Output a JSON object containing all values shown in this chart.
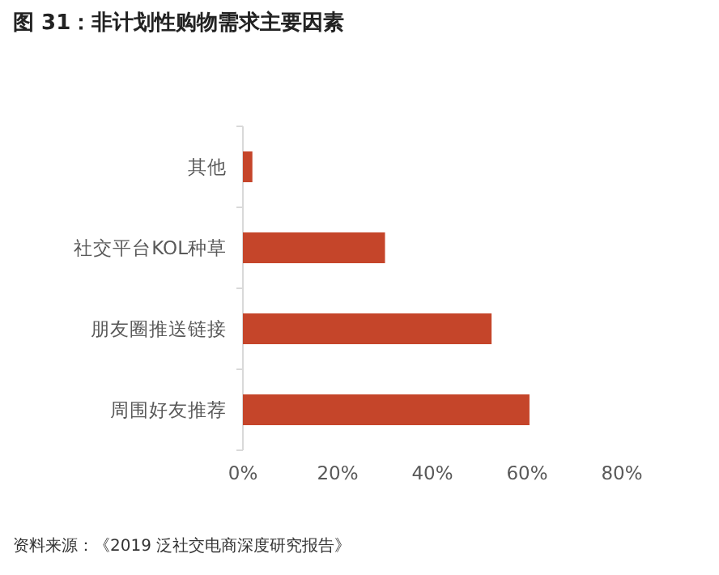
{
  "chart_data": {
    "type": "bar",
    "orientation": "horizontal",
    "title": "图 31：非计划性购物需求主要因素",
    "categories": [
      "其他",
      "社交平台KOL种草",
      "朋友圈推送链接",
      "周围好友推荐"
    ],
    "values": [
      2,
      30,
      52.5,
      60.5
    ],
    "color": "#c5452a",
    "xlim": [
      0,
      80
    ],
    "xticks": [
      {
        "value": 0,
        "label": "0%"
      },
      {
        "value": 20,
        "label": "20%"
      },
      {
        "value": 40,
        "label": "40%"
      },
      {
        "value": 60,
        "label": "60%"
      },
      {
        "value": 80,
        "label": "80%"
      }
    ],
    "grid": false,
    "annotations": [
      "资料来源：《2019 泛社交电商深度研究报告》"
    ]
  }
}
